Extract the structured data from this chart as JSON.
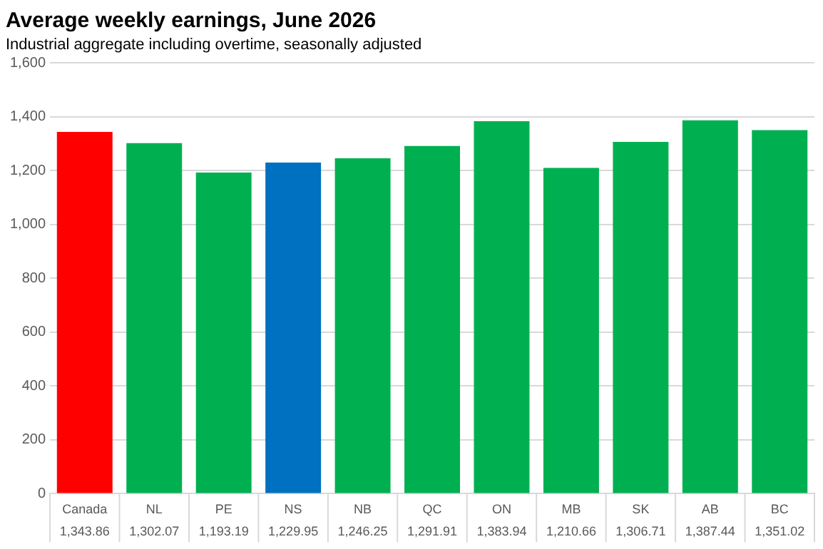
{
  "chart_data": {
    "type": "bar",
    "title": "Average weekly earnings, June 2026",
    "subtitle": "Industrial aggregate including overtime, seasonally adjusted",
    "categories": [
      "Canada",
      "NL",
      "PE",
      "NS",
      "NB",
      "QC",
      "ON",
      "MB",
      "SK",
      "AB",
      "BC"
    ],
    "values": [
      1343.86,
      1302.07,
      1193.19,
      1229.95,
      1246.25,
      1291.91,
      1383.94,
      1210.66,
      1306.71,
      1387.44,
      1351.02
    ],
    "colors": [
      "#ff0000",
      "#00b050",
      "#00b050",
      "#0070c0",
      "#00b050",
      "#00b050",
      "#00b050",
      "#00b050",
      "#00b050",
      "#00b050",
      "#00b050"
    ],
    "value_labels": [
      "1,343.86",
      "1,302.07",
      "1,193.19",
      "1,229.95",
      "1,246.25",
      "1,291.91",
      "1,383.94",
      "1,210.66",
      "1,306.71",
      "1,387.44",
      "1,351.02"
    ],
    "ylim": [
      0,
      1600
    ],
    "yticks": [
      0,
      200,
      400,
      600,
      800,
      {
        "value": 1000,
        "label": "1,000"
      },
      {
        "value": 1200,
        "label": "1,200"
      },
      {
        "value": 1400,
        "label": "1,400"
      },
      {
        "value": 1600,
        "label": "1,600"
      }
    ],
    "grid": "y",
    "legend": false
  }
}
